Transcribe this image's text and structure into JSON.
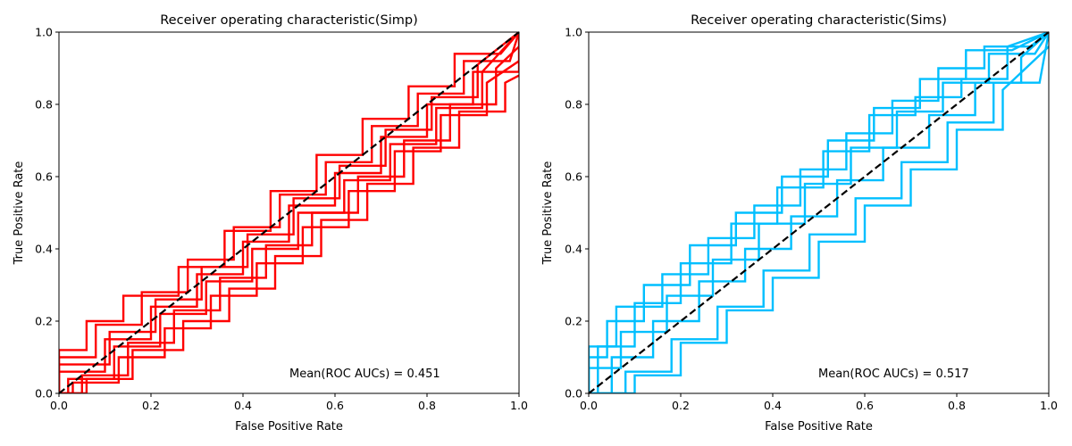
{
  "chart_data": [
    {
      "type": "line",
      "title": "Receiver operating characteristic(Simp)",
      "xlabel": "False Positive Rate",
      "ylabel": "True Positive Rate",
      "xlim": [
        0,
        1
      ],
      "ylim": [
        0,
        1
      ],
      "xticks": [
        "0.0",
        "0.2",
        "0.4",
        "0.6",
        "0.8",
        "1.0"
      ],
      "yticks": [
        "0.0",
        "0.2",
        "0.4",
        "0.6",
        "0.8",
        "1.0"
      ],
      "grid": false,
      "annotation": "Mean(ROC AUCs) = 0.451",
      "series_color": "#ff0000",
      "reference_line": {
        "x": [
          0,
          1
        ],
        "y": [
          0,
          1
        ],
        "style": "dashed",
        "color": "#000000"
      },
      "series": [
        {
          "x": [
            0.0,
            0.0,
            0.1,
            0.1,
            0.2,
            0.2,
            0.3,
            0.3,
            0.4,
            0.4,
            0.5,
            0.5,
            0.6,
            0.6,
            0.7,
            0.7,
            0.8,
            0.8,
            0.9,
            0.9,
            1.0,
            1.0
          ],
          "y": [
            0.0,
            0.06,
            0.06,
            0.15,
            0.15,
            0.24,
            0.24,
            0.33,
            0.33,
            0.42,
            0.42,
            0.52,
            0.52,
            0.61,
            0.61,
            0.71,
            0.71,
            0.8,
            0.8,
            0.89,
            0.89,
            1.0
          ]
        },
        {
          "x": [
            0.0,
            0.02,
            0.02,
            0.12,
            0.12,
            0.22,
            0.22,
            0.32,
            0.32,
            0.42,
            0.42,
            0.52,
            0.52,
            0.62,
            0.62,
            0.72,
            0.72,
            0.82,
            0.82,
            0.92,
            0.92,
            1.0
          ],
          "y": [
            0.0,
            0.0,
            0.04,
            0.04,
            0.13,
            0.13,
            0.22,
            0.22,
            0.31,
            0.31,
            0.4,
            0.4,
            0.5,
            0.5,
            0.59,
            0.59,
            0.69,
            0.69,
            0.79,
            0.79,
            0.89,
            1.0
          ]
        },
        {
          "x": [
            0.0,
            0.0,
            0.08,
            0.08,
            0.18,
            0.18,
            0.28,
            0.28,
            0.38,
            0.38,
            0.48,
            0.48,
            0.58,
            0.58,
            0.68,
            0.68,
            0.78,
            0.78,
            0.88,
            0.88,
            0.98,
            1.0
          ],
          "y": [
            0.0,
            0.1,
            0.1,
            0.19,
            0.19,
            0.28,
            0.28,
            0.37,
            0.37,
            0.46,
            0.46,
            0.55,
            0.55,
            0.64,
            0.64,
            0.74,
            0.74,
            0.83,
            0.83,
            0.92,
            0.92,
            1.0
          ]
        },
        {
          "x": [
            0.0,
            0.05,
            0.05,
            0.15,
            0.15,
            0.25,
            0.25,
            0.35,
            0.35,
            0.45,
            0.45,
            0.55,
            0.55,
            0.65,
            0.65,
            0.75,
            0.75,
            0.85,
            0.85,
            0.95,
            0.95,
            1.0
          ],
          "y": [
            0.0,
            0.0,
            0.05,
            0.05,
            0.14,
            0.14,
            0.23,
            0.23,
            0.32,
            0.32,
            0.41,
            0.41,
            0.5,
            0.5,
            0.6,
            0.6,
            0.7,
            0.7,
            0.8,
            0.8,
            0.9,
            0.96
          ]
        },
        {
          "x": [
            0.0,
            0.0,
            0.06,
            0.06,
            0.14,
            0.14,
            0.26,
            0.26,
            0.36,
            0.36,
            0.46,
            0.46,
            0.56,
            0.56,
            0.66,
            0.66,
            0.76,
            0.76,
            0.86,
            0.86,
            0.96,
            1.0
          ],
          "y": [
            0.0,
            0.12,
            0.12,
            0.2,
            0.2,
            0.27,
            0.27,
            0.35,
            0.35,
            0.45,
            0.45,
            0.56,
            0.56,
            0.66,
            0.66,
            0.76,
            0.76,
            0.85,
            0.85,
            0.94,
            0.94,
            1.0
          ]
        },
        {
          "x": [
            0.0,
            0.03,
            0.03,
            0.13,
            0.13,
            0.23,
            0.23,
            0.33,
            0.33,
            0.43,
            0.43,
            0.53,
            0.53,
            0.63,
            0.63,
            0.73,
            0.73,
            0.83,
            0.83,
            0.93,
            0.93,
            1.0
          ],
          "y": [
            0.0,
            0.0,
            0.03,
            0.03,
            0.1,
            0.1,
            0.18,
            0.18,
            0.27,
            0.27,
            0.36,
            0.36,
            0.46,
            0.46,
            0.56,
            0.56,
            0.67,
            0.67,
            0.77,
            0.77,
            0.86,
            0.92
          ]
        },
        {
          "x": [
            0.0,
            0.0,
            0.11,
            0.11,
            0.21,
            0.21,
            0.31,
            0.31,
            0.41,
            0.41,
            0.51,
            0.51,
            0.61,
            0.61,
            0.71,
            0.71,
            0.81,
            0.81,
            0.91,
            0.91,
            1.0
          ],
          "y": [
            0.0,
            0.08,
            0.08,
            0.17,
            0.17,
            0.26,
            0.26,
            0.35,
            0.35,
            0.44,
            0.44,
            0.54,
            0.54,
            0.63,
            0.63,
            0.73,
            0.73,
            0.82,
            0.82,
            0.91,
            1.0
          ]
        },
        {
          "x": [
            0.0,
            0.06,
            0.06,
            0.16,
            0.16,
            0.27,
            0.27,
            0.37,
            0.37,
            0.47,
            0.47,
            0.57,
            0.57,
            0.67,
            0.67,
            0.77,
            0.77,
            0.87,
            0.87,
            0.97,
            0.97,
            1.0
          ],
          "y": [
            0.0,
            0.0,
            0.04,
            0.04,
            0.12,
            0.12,
            0.2,
            0.2,
            0.29,
            0.29,
            0.38,
            0.38,
            0.48,
            0.48,
            0.58,
            0.58,
            0.68,
            0.68,
            0.78,
            0.78,
            0.86,
            0.88
          ]
        }
      ]
    },
    {
      "type": "line",
      "title": "Receiver operating characteristic(Sims)",
      "xlabel": "False Positive Rate",
      "ylabel": "True Positive Rate",
      "xlim": [
        0,
        1
      ],
      "ylim": [
        0,
        1
      ],
      "xticks": [
        "0.0",
        "0.2",
        "0.4",
        "0.6",
        "0.8",
        "1.0"
      ],
      "yticks": [
        "0.0",
        "0.2",
        "0.4",
        "0.6",
        "0.8",
        "1.0"
      ],
      "grid": false,
      "annotation": "Mean(ROC AUCs) = 0.517",
      "series_color": "#00bfff",
      "reference_line": {
        "x": [
          0,
          1
        ],
        "y": [
          0,
          1
        ],
        "style": "dashed",
        "color": "#000000"
      },
      "series": [
        {
          "x": [
            0.0,
            0.0,
            0.06,
            0.06,
            0.16,
            0.16,
            0.26,
            0.26,
            0.36,
            0.36,
            0.46,
            0.46,
            0.56,
            0.56,
            0.66,
            0.66,
            0.76,
            0.76,
            0.86,
            0.86,
            0.96,
            1.0
          ],
          "y": [
            0.0,
            0.13,
            0.13,
            0.24,
            0.24,
            0.33,
            0.33,
            0.43,
            0.43,
            0.52,
            0.52,
            0.62,
            0.62,
            0.72,
            0.72,
            0.81,
            0.81,
            0.9,
            0.9,
            0.96,
            0.96,
            1.0
          ]
        },
        {
          "x": [
            0.0,
            0.08,
            0.08,
            0.18,
            0.18,
            0.28,
            0.28,
            0.38,
            0.38,
            0.48,
            0.48,
            0.58,
            0.58,
            0.68,
            0.68,
            0.78,
            0.78,
            0.88,
            0.88,
            0.98,
            1.0
          ],
          "y": [
            0.0,
            0.0,
            0.06,
            0.06,
            0.15,
            0.15,
            0.24,
            0.24,
            0.34,
            0.34,
            0.44,
            0.44,
            0.54,
            0.54,
            0.64,
            0.64,
            0.75,
            0.75,
            0.86,
            0.86,
            1.0
          ]
        },
        {
          "x": [
            0.0,
            0.0,
            0.04,
            0.04,
            0.12,
            0.12,
            0.22,
            0.22,
            0.32,
            0.32,
            0.42,
            0.42,
            0.52,
            0.52,
            0.62,
            0.62,
            0.72,
            0.72,
            0.82,
            0.82,
            0.92,
            1.0
          ],
          "y": [
            0.0,
            0.1,
            0.1,
            0.2,
            0.2,
            0.3,
            0.3,
            0.41,
            0.41,
            0.5,
            0.5,
            0.6,
            0.6,
            0.7,
            0.7,
            0.79,
            0.79,
            0.87,
            0.87,
            0.95,
            0.95,
            1.0
          ]
        },
        {
          "x": [
            0.0,
            0.1,
            0.1,
            0.2,
            0.2,
            0.3,
            0.3,
            0.4,
            0.4,
            0.5,
            0.5,
            0.6,
            0.6,
            0.7,
            0.7,
            0.8,
            0.8,
            0.9,
            0.9,
            1.0
          ],
          "y": [
            0.0,
            0.0,
            0.05,
            0.05,
            0.14,
            0.14,
            0.23,
            0.23,
            0.32,
            0.32,
            0.42,
            0.42,
            0.52,
            0.52,
            0.62,
            0.62,
            0.73,
            0.73,
            0.84,
            0.96
          ]
        },
        {
          "x": [
            0.0,
            0.0,
            0.07,
            0.07,
            0.17,
            0.17,
            0.27,
            0.27,
            0.37,
            0.37,
            0.47,
            0.47,
            0.57,
            0.57,
            0.67,
            0.67,
            0.77,
            0.77,
            0.87,
            0.87,
            0.97,
            1.0
          ],
          "y": [
            0.0,
            0.07,
            0.07,
            0.17,
            0.17,
            0.27,
            0.27,
            0.37,
            0.37,
            0.47,
            0.47,
            0.58,
            0.58,
            0.68,
            0.68,
            0.78,
            0.78,
            0.86,
            0.86,
            0.94,
            0.94,
            1.0
          ]
        },
        {
          "x": [
            0.0,
            0.02,
            0.02,
            0.1,
            0.1,
            0.2,
            0.2,
            0.31,
            0.31,
            0.41,
            0.41,
            0.51,
            0.51,
            0.61,
            0.61,
            0.71,
            0.71,
            0.81,
            0.81,
            0.91,
            0.91,
            1.0
          ],
          "y": [
            0.0,
            0.0,
            0.13,
            0.13,
            0.25,
            0.25,
            0.36,
            0.36,
            0.47,
            0.47,
            0.57,
            0.57,
            0.67,
            0.67,
            0.77,
            0.77,
            0.82,
            0.82,
            0.87,
            0.87,
            0.96,
            1.0
          ]
        },
        {
          "x": [
            0.0,
            0.05,
            0.05,
            0.14,
            0.14,
            0.24,
            0.24,
            0.34,
            0.34,
            0.44,
            0.44,
            0.54,
            0.54,
            0.64,
            0.64,
            0.74,
            0.74,
            0.84,
            0.84,
            0.94,
            0.94,
            1.0
          ],
          "y": [
            0.0,
            0.0,
            0.1,
            0.1,
            0.2,
            0.2,
            0.31,
            0.31,
            0.4,
            0.4,
            0.49,
            0.49,
            0.59,
            0.59,
            0.68,
            0.68,
            0.77,
            0.77,
            0.86,
            0.86,
            0.93,
            1.0
          ]
        }
      ]
    }
  ]
}
